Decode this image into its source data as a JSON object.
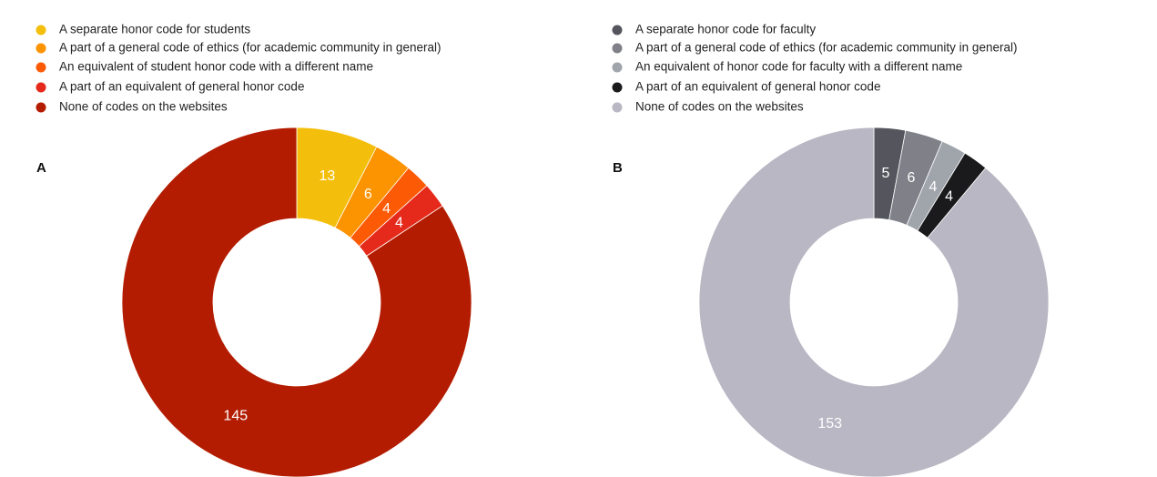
{
  "chart_data": [
    {
      "type": "pie",
      "label": "A",
      "categories": [
        "A separate honor code for students",
        "A part of a general code of ethics (for academic community in general)",
        "An equivalent of student honor code with a different name",
        "A part of an equivalent of general honor code",
        "None of codes on the websites"
      ],
      "values": [
        13,
        6,
        4,
        4,
        145
      ],
      "colors": [
        "#f4bf0c",
        "#fc9300",
        "#fc5a05",
        "#e52a1b",
        "#b31c00"
      ]
    },
    {
      "type": "pie",
      "label": "B",
      "categories": [
        "A separate honor code for faculty",
        "A part of a general code of ethics (for academic community in general)",
        "An equivalent of honor code for faculty with a different name",
        "A part of an equivalent of general honor code",
        "None of codes on the websites"
      ],
      "values": [
        5,
        6,
        4,
        4,
        153
      ],
      "colors": [
        "#55565d",
        "#7f8088",
        "#a0a4ab",
        "#1a1a1c",
        "#b8b7c3"
      ]
    }
  ]
}
